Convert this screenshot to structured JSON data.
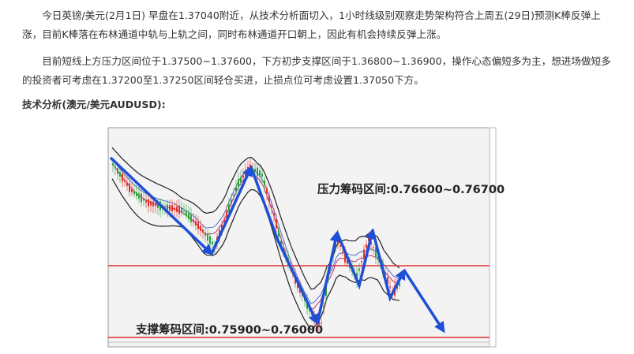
{
  "paragraphs": [
    "今日英镑/美元(2月1日) 早盘在1.37040附近，从技术分析面切入，1小时线级别观察走势架构符合上周五(29日)预测K棒反弹上涨，目前K棒落在布林通道中轨与上轨之间，同时布林通道开口朝上，因此有机会持续反弹上涨。",
    "目前短线上方压力区间位于1.37500~1.37600，下方初步支撑区间于1.36800~1.36900，操作心态偏短多为主，想进场做短多的投资者可考虑在1.37200至1.37250区间轻仓买进，止损点位可考虑设置1.37050下方。"
  ],
  "heading": "技术分析(澳元/美元AUDUSD):",
  "chart_image": {
    "resistance_label": "压力筹码区间:0.76600~0.76700",
    "support_label": "支撑筹码区间:0.75900~0.76000"
  }
}
